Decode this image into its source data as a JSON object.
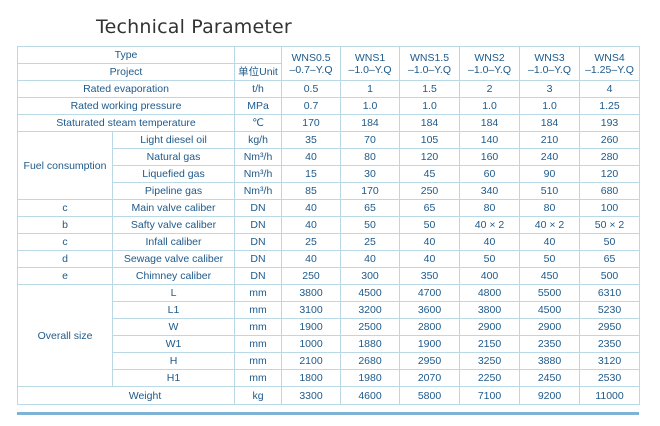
{
  "title": "Technical Parameter",
  "header": {
    "type_label": "Type",
    "project_label": "Project",
    "unit_label": "单位Unit",
    "models": [
      {
        "name": "WNS0.5",
        "spec": "–0.7–Y.Q"
      },
      {
        "name": "WNS1",
        "spec": "–1.0–Y.Q"
      },
      {
        "name": "WNS1.5",
        "spec": "–1.0–Y.Q"
      },
      {
        "name": "WNS2",
        "spec": "–1.0–Y.Q"
      },
      {
        "name": "WNS3",
        "spec": "–1.0–Y.Q"
      },
      {
        "name": "WNS4",
        "spec": "–1.25–Y.Q"
      }
    ]
  },
  "rows": {
    "rated_evaporation": {
      "label": "Rated evaporation",
      "unit": "t/h",
      "values": [
        "0.5",
        "1",
        "1.5",
        "2",
        "3",
        "4"
      ]
    },
    "rated_pressure": {
      "label": "Rated working pressure",
      "unit": "MPa",
      "values": [
        "0.7",
        "1.0",
        "1.0",
        "1.0",
        "1.0",
        "1.25"
      ]
    },
    "steam_temp": {
      "label": "Staturated steam temperature",
      "unit": "℃",
      "values": [
        "170",
        "184",
        "184",
        "184",
        "184",
        "193"
      ]
    },
    "fuel": {
      "group_label": "Fuel consumption",
      "items": [
        {
          "label": "Light diesel oil",
          "unit": "kg/h",
          "values": [
            "35",
            "70",
            "105",
            "140",
            "210",
            "260"
          ]
        },
        {
          "label": "Natural gas",
          "unit": "Nm³/h",
          "values": [
            "40",
            "80",
            "120",
            "160",
            "240",
            "280"
          ]
        },
        {
          "label": "Liquefied gas",
          "unit": "Nm³/h",
          "values": [
            "15",
            "30",
            "45",
            "60",
            "90",
            "120"
          ]
        },
        {
          "label": "Pipeline gas",
          "unit": "Nm³/h",
          "values": [
            "85",
            "170",
            "250",
            "340",
            "510",
            "680"
          ]
        }
      ]
    },
    "calibers": [
      {
        "key": "c",
        "label": "Main valve caliber",
        "unit": "DN",
        "values": [
          "40",
          "65",
          "65",
          "80",
          "80",
          "100"
        ]
      },
      {
        "key": "b",
        "label": "Safty valve caliber",
        "unit": "DN",
        "values": [
          "40",
          "50",
          "50",
          "40 × 2",
          "40 × 2",
          "50 × 2"
        ]
      },
      {
        "key": "c",
        "label": "Infall caliber",
        "unit": "DN",
        "values": [
          "25",
          "25",
          "40",
          "40",
          "40",
          "50"
        ]
      },
      {
        "key": "d",
        "label": "Sewage valve caliber",
        "unit": "DN",
        "values": [
          "40",
          "40",
          "40",
          "50",
          "50",
          "65"
        ]
      },
      {
        "key": "e",
        "label": "Chimney caliber",
        "unit": "DN",
        "values": [
          "250",
          "300",
          "350",
          "400",
          "450",
          "500"
        ]
      }
    ],
    "overall": {
      "group_label": "Overall size",
      "items": [
        {
          "label": "L",
          "unit": "mm",
          "values": [
            "3800",
            "4500",
            "4700",
            "4800",
            "5500",
            "6310"
          ]
        },
        {
          "label": "L1",
          "unit": "mm",
          "values": [
            "3100",
            "3200",
            "3600",
            "3800",
            "4500",
            "5230"
          ]
        },
        {
          "label": "W",
          "unit": "mm",
          "values": [
            "1900",
            "2500",
            "2800",
            "2900",
            "2900",
            "2950"
          ]
        },
        {
          "label": "W1",
          "unit": "mm",
          "values": [
            "1000",
            "1880",
            "1900",
            "2150",
            "2350",
            "2350"
          ]
        },
        {
          "label": "H",
          "unit": "mm",
          "values": [
            "2100",
            "2680",
            "2950",
            "3250",
            "3880",
            "3120"
          ]
        },
        {
          "label": "H1",
          "unit": "mm",
          "values": [
            "1800",
            "1980",
            "2070",
            "2250",
            "2450",
            "2530"
          ]
        }
      ]
    },
    "weight": {
      "label": "Weight",
      "unit": "kg",
      "values": [
        "3300",
        "4600",
        "5800",
        "7100",
        "9200",
        "11000"
      ]
    }
  }
}
